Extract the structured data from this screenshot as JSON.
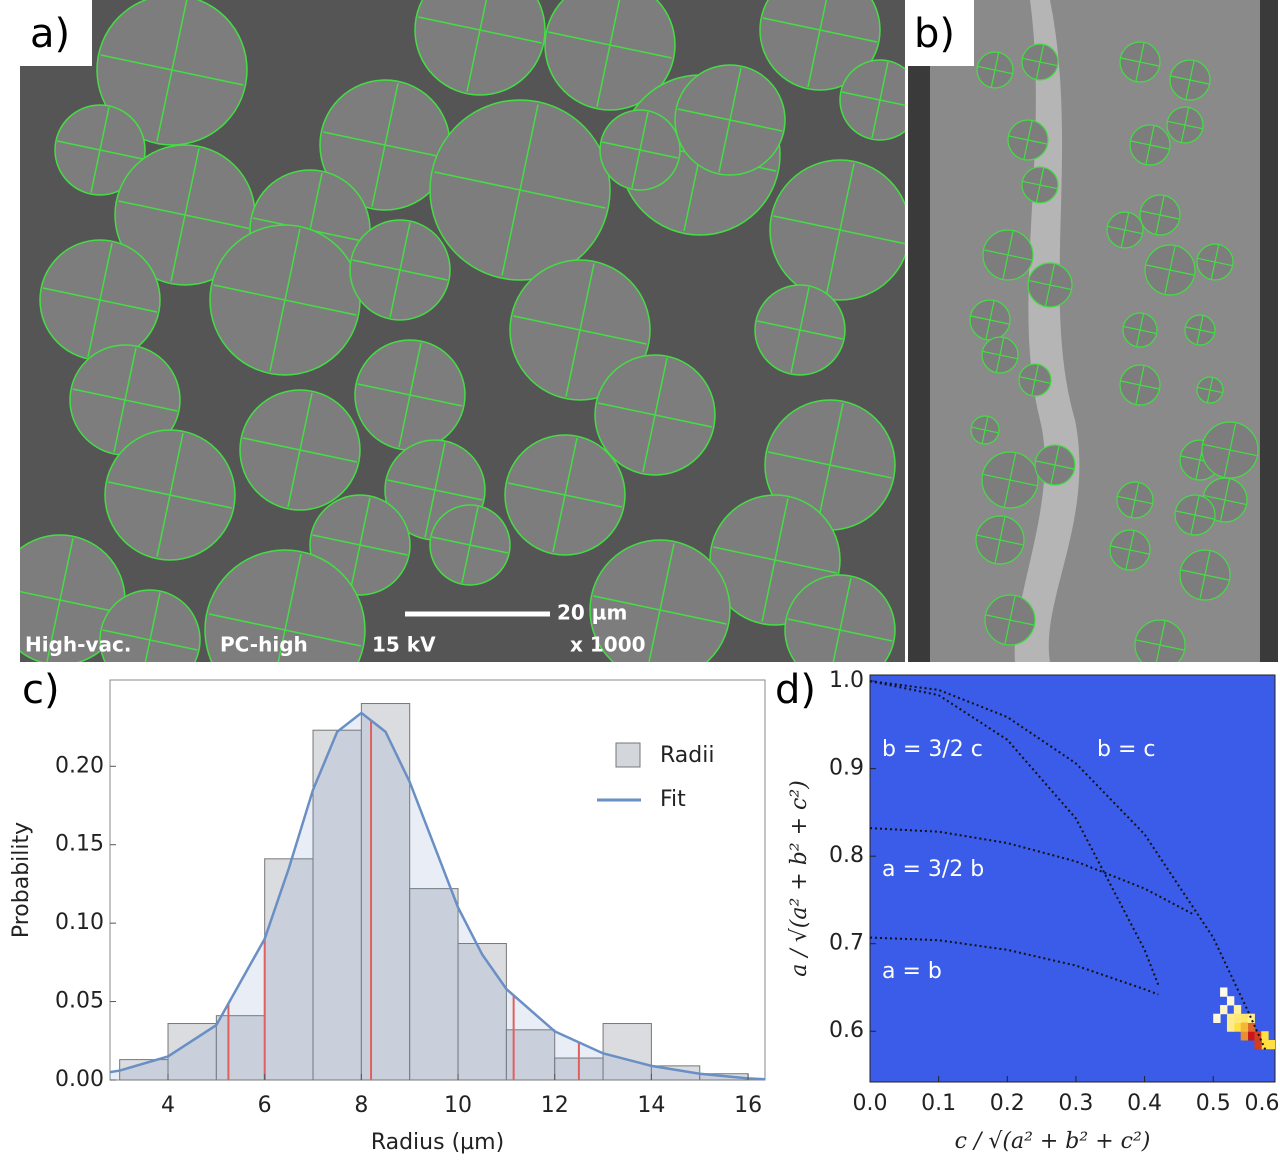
{
  "images": {
    "a": {
      "label": "a)",
      "scale_bar": "20 µm",
      "info": [
        "High-vac.",
        "PC-high",
        "15 kV",
        "x 1000"
      ]
    },
    "b": {
      "label": "b)"
    }
  },
  "chart_data": [
    {
      "type": "histogram",
      "panel_label": "c)",
      "x_label": "Radius (µm)",
      "y_label": "Probability",
      "bins": [
        3,
        4,
        5,
        6,
        7,
        8,
        9,
        10,
        11,
        12,
        13,
        14,
        15,
        16
      ],
      "series": [
        {
          "name": "Radii",
          "color": "#d3d6db",
          "values": [
            0.013,
            0.036,
            0.041,
            0.141,
            0.223,
            0.24,
            0.122,
            0.087,
            0.032,
            0.014,
            0.036,
            0.009,
            0.004
          ]
        },
        {
          "name": "Fit",
          "color": "#6a8fc5",
          "x": [
            2.8,
            3,
            4,
            5,
            6,
            6.5,
            7,
            7.5,
            8,
            8.5,
            9,
            9.5,
            10,
            10.5,
            11,
            12,
            13,
            14,
            15,
            16,
            16.35
          ],
          "values": [
            0.005,
            0.006,
            0.015,
            0.035,
            0.09,
            0.135,
            0.185,
            0.222,
            0.234,
            0.222,
            0.19,
            0.15,
            0.11,
            0.08,
            0.058,
            0.031,
            0.017,
            0.009,
            0.004,
            0.001,
            0.0005
          ]
        }
      ],
      "markers": {
        "color": "#e06060",
        "x": [
          5.25,
          6.0,
          8.2,
          11.15,
          12.5
        ]
      },
      "xlim": [
        2.8,
        16.35
      ],
      "ylim": [
        0,
        0.255
      ],
      "xticks": [
        4,
        6,
        8,
        10,
        12,
        14,
        16
      ],
      "yticks": [
        {
          "value": 0,
          "label": "0.00"
        },
        {
          "value": 0.05,
          "label": "0.05"
        },
        {
          "value": 0.1,
          "label": "0.10"
        },
        {
          "value": 0.15,
          "label": "0.15"
        },
        {
          "value": 0.2,
          "label": "0.20"
        }
      ]
    },
    {
      "type": "heatmap",
      "panel_label": "d)",
      "x_label": "c / √(a² + b² + c²)",
      "y_label": "a / √(a² + b² + c²)",
      "background": "#3a5ce8",
      "colormap": [
        "#ffffff",
        "#ffe040",
        "#c8141c"
      ],
      "cell_size": [
        0.01,
        0.01
      ],
      "cells": {
        "x": [
          0.58,
          0.57,
          0.56,
          0.55,
          0.56,
          0.54,
          0.55,
          0.53,
          0.54,
          0.52,
          0.53,
          0.51,
          0.52,
          0.51,
          0.5,
          0.55,
          0.57,
          0.52,
          0.54,
          0.53
        ],
        "y": [
          0.58,
          0.58,
          0.58,
          0.59,
          0.59,
          0.59,
          0.6,
          0.6,
          0.61,
          0.61,
          0.62,
          0.62,
          0.63,
          0.64,
          0.61,
          0.61,
          0.59,
          0.6,
          0.6,
          0.61
        ],
        "values": [
          0.5,
          0.5,
          0.9,
          1.0,
          0.9,
          0.7,
          0.8,
          0.5,
          0.4,
          0.3,
          0.25,
          0.15,
          0.1,
          0.06,
          0.1,
          0.3,
          0.5,
          0.3,
          0.6,
          0.35
        ]
      },
      "curves": [
        {
          "x": [
            0,
            0.1,
            0.2,
            0.3,
            0.4,
            0.42
          ],
          "values": [
            0.707,
            0.704,
            0.693,
            0.675,
            0.648,
            0.642
          ]
        },
        {
          "x": [
            0,
            0.1,
            0.2,
            0.3,
            0.4,
            0.47
          ],
          "values": [
            0.832,
            0.828,
            0.815,
            0.794,
            0.763,
            0.734
          ]
        },
        {
          "x": [
            0,
            0.1,
            0.2,
            0.3,
            0.4,
            0.5,
            0.55,
            0.577
          ],
          "values": [
            1,
            0.99,
            0.959,
            0.906,
            0.825,
            0.707,
            0.624,
            0.577
          ]
        },
        {
          "x": [
            0,
            0.1,
            0.2,
            0.3,
            0.4,
            0.42
          ],
          "values": [
            1,
            0.984,
            0.933,
            0.843,
            0.693,
            0.653
          ]
        }
      ],
      "annotations": [
        "b = 3/2 c",
        "b = c",
        "a = 3/2 b",
        "a = b"
      ],
      "xlim": [
        0,
        0.59
      ],
      "ylim": [
        0.542,
        1.007
      ],
      "xticks": [
        {
          "value": 0,
          "label": "0.0"
        },
        {
          "value": 0.1,
          "label": "0.1"
        },
        {
          "value": 0.2,
          "label": "0.2"
        },
        {
          "value": 0.3,
          "label": "0.3"
        },
        {
          "value": 0.4,
          "label": "0.4"
        },
        {
          "value": 0.5,
          "label": "0.5"
        },
        {
          "value": 0.6,
          "label": "0.6"
        }
      ],
      "yticks": [
        {
          "value": 0.6,
          "label": "0.6"
        },
        {
          "value": 0.7,
          "label": "0.7"
        },
        {
          "value": 0.8,
          "label": "0.8"
        },
        {
          "value": 0.9,
          "label": "0.9"
        },
        {
          "value": 1,
          "label": "1.0"
        }
      ]
    }
  ]
}
